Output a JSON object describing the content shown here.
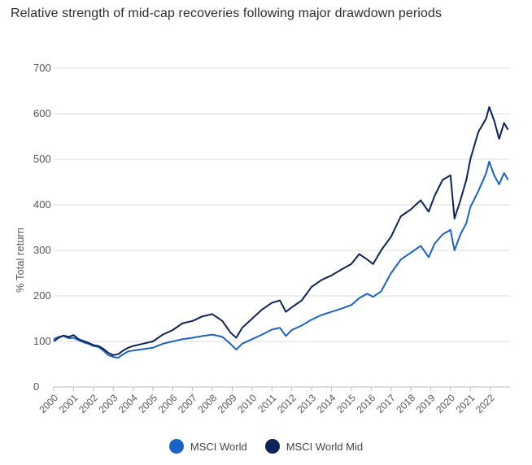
{
  "chart_data": {
    "type": "line",
    "title": "Relative strength of mid-cap recoveries following major drawdown periods",
    "ylabel": "% Total return",
    "xlabel": "",
    "ylim": [
      0,
      700
    ],
    "yticks": [
      0,
      100,
      200,
      300,
      400,
      500,
      600,
      700
    ],
    "xlim": [
      2000,
      2023.0
    ],
    "xticks": [
      "2000",
      "2001",
      "2002",
      "2003",
      "2004",
      "2005",
      "2006",
      "2007",
      "2008",
      "2009",
      "2010",
      "2011",
      "2012",
      "2013",
      "2014",
      "2015",
      "2016",
      "2017",
      "2018",
      "2019",
      "2020",
      "2021",
      "2022"
    ],
    "grid": true,
    "legend_position": "bottom-center",
    "series": [
      {
        "name": "MSCI World",
        "color": "#1a63c4",
        "x": [
          2000.0,
          2000.25,
          2000.5,
          2000.75,
          2001.0,
          2001.25,
          2001.5,
          2001.75,
          2002.0,
          2002.25,
          2002.5,
          2002.75,
          2003.0,
          2003.25,
          2003.5,
          2003.75,
          2004.0,
          2004.5,
          2005.0,
          2005.5,
          2006.0,
          2006.5,
          2007.0,
          2007.5,
          2008.0,
          2008.5,
          2008.9,
          2009.2,
          2009.5,
          2010.0,
          2010.5,
          2011.0,
          2011.4,
          2011.7,
          2012.0,
          2012.5,
          2013.0,
          2013.5,
          2014.0,
          2014.5,
          2015.0,
          2015.4,
          2015.8,
          2016.1,
          2016.5,
          2017.0,
          2017.5,
          2018.0,
          2018.5,
          2018.9,
          2019.2,
          2019.6,
          2020.0,
          2020.2,
          2020.5,
          2020.8,
          2021.0,
          2021.4,
          2021.8,
          2021.95,
          2022.2,
          2022.45,
          2022.7,
          2022.9
        ],
        "values": [
          105,
          110,
          112,
          107,
          108,
          103,
          98,
          95,
          90,
          88,
          80,
          70,
          66,
          64,
          72,
          78,
          80,
          83,
          86,
          95,
          100,
          105,
          108,
          112,
          115,
          110,
          95,
          82,
          95,
          105,
          115,
          126,
          130,
          112,
          125,
          135,
          148,
          158,
          165,
          172,
          180,
          195,
          205,
          198,
          210,
          250,
          280,
          295,
          310,
          285,
          315,
          335,
          345,
          300,
          335,
          360,
          395,
          430,
          470,
          495,
          465,
          445,
          470,
          455
        ]
      },
      {
        "name": "MSCI World Mid",
        "color": "#0b2359",
        "x": [
          2000.0,
          2000.25,
          2000.5,
          2000.75,
          2001.0,
          2001.25,
          2001.5,
          2001.75,
          2002.0,
          2002.25,
          2002.5,
          2002.75,
          2003.0,
          2003.25,
          2003.5,
          2003.75,
          2004.0,
          2004.5,
          2005.0,
          2005.5,
          2006.0,
          2006.5,
          2007.0,
          2007.5,
          2008.0,
          2008.5,
          2008.9,
          2009.2,
          2009.5,
          2010.0,
          2010.5,
          2011.0,
          2011.4,
          2011.7,
          2012.0,
          2012.5,
          2013.0,
          2013.5,
          2014.0,
          2014.5,
          2015.0,
          2015.4,
          2015.8,
          2016.1,
          2016.5,
          2017.0,
          2017.5,
          2018.0,
          2018.5,
          2018.9,
          2019.2,
          2019.6,
          2020.0,
          2020.2,
          2020.5,
          2020.8,
          2021.0,
          2021.4,
          2021.8,
          2021.95,
          2022.2,
          2022.45,
          2022.7,
          2022.9
        ],
        "values": [
          100,
          108,
          113,
          110,
          114,
          105,
          101,
          97,
          92,
          90,
          84,
          75,
          70,
          72,
          80,
          86,
          90,
          95,
          100,
          115,
          125,
          140,
          145,
          155,
          160,
          145,
          120,
          108,
          130,
          150,
          170,
          185,
          190,
          165,
          175,
          190,
          220,
          235,
          245,
          258,
          270,
          292,
          280,
          270,
          300,
          330,
          375,
          390,
          410,
          385,
          420,
          455,
          465,
          370,
          410,
          455,
          500,
          560,
          590,
          615,
          585,
          545,
          580,
          565
        ]
      }
    ]
  }
}
